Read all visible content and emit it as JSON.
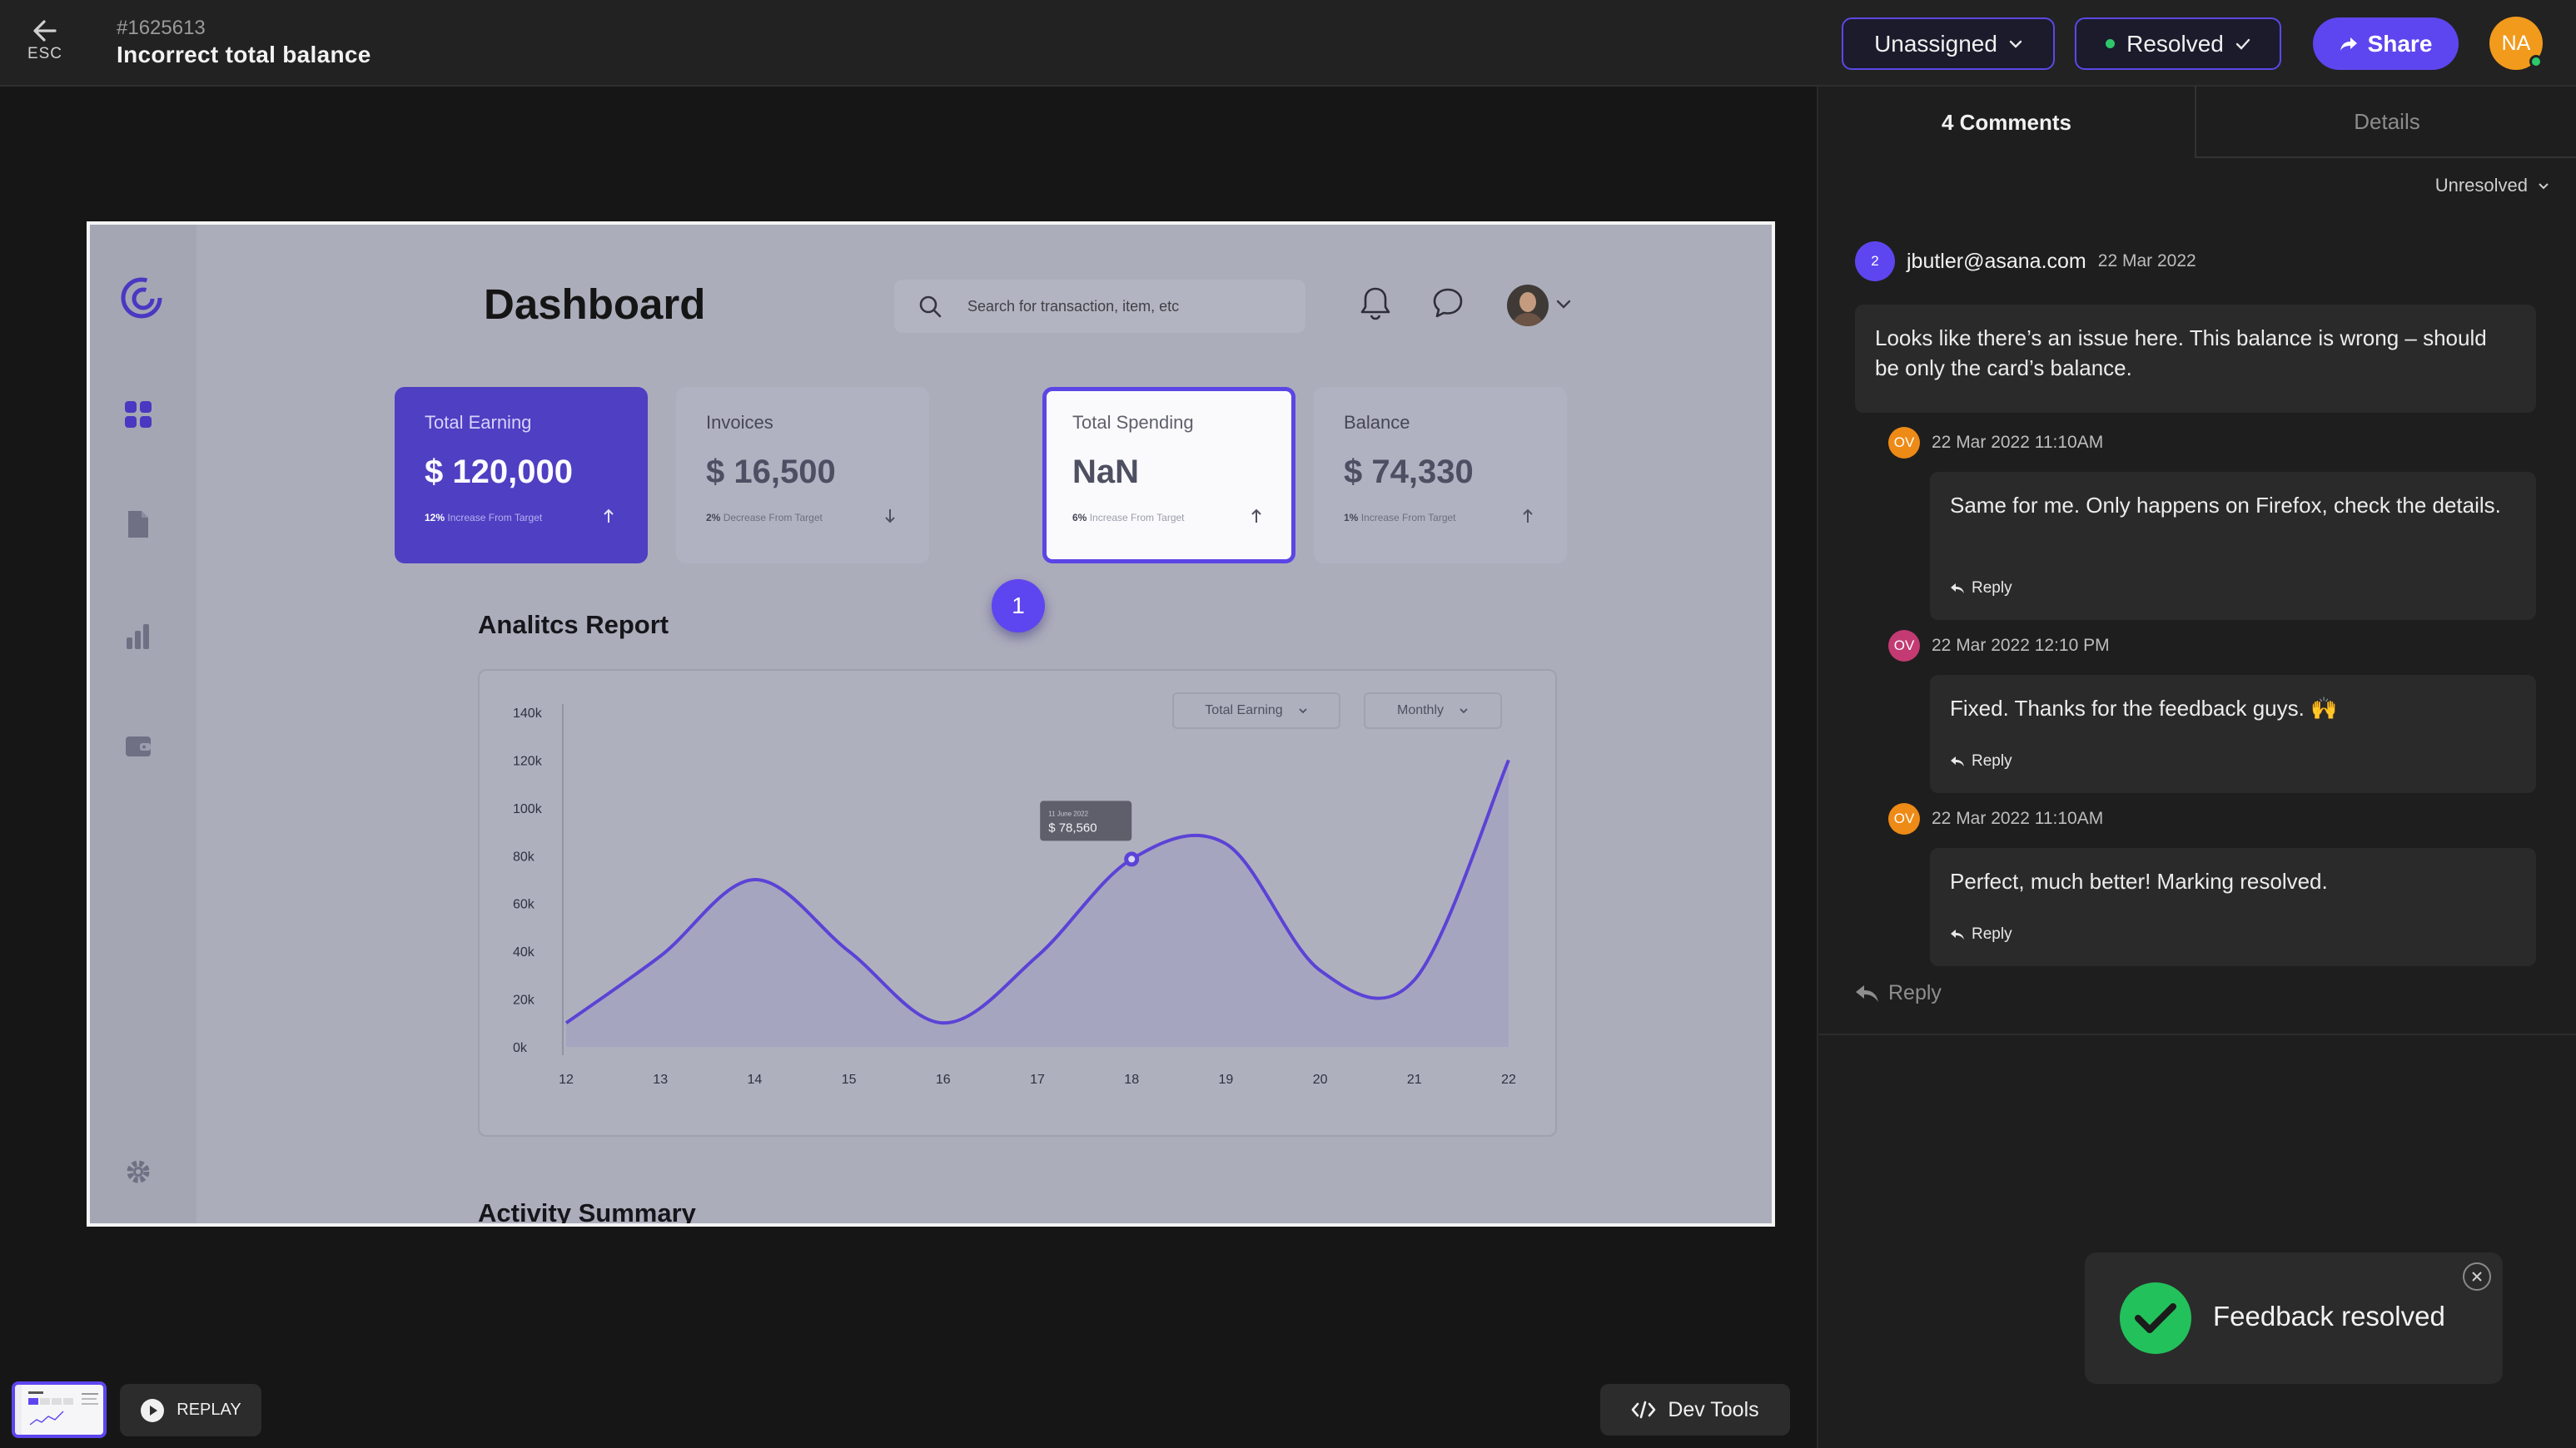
{
  "header": {
    "esc_label": "ESC",
    "ticket_id": "#1625613",
    "ticket_title": "Incorrect total balance",
    "assignee": "Unassigned",
    "status": "Resolved",
    "share_label": "Share",
    "user_initials": "NA"
  },
  "preview": {
    "title": "Dashboard",
    "search_placeholder": "Search for transaction, item, etc",
    "cards": [
      {
        "label": "Total Earning",
        "value": "$ 120,000",
        "pct": "12%",
        "note": "Increase From Target",
        "trend": "up"
      },
      {
        "label": "Invoices",
        "value": "$ 16,500",
        "pct": "2%",
        "note": "Decrease From Target",
        "trend": "down"
      },
      {
        "label": "Total Spending",
        "value": "NaN",
        "pct": "6%",
        "note": "Increase From Target",
        "trend": "up"
      },
      {
        "label": "Balance",
        "value": "$ 74,330",
        "pct": "1%",
        "note": "Increase From Target",
        "trend": "up"
      }
    ],
    "pin_number": "1",
    "report_title": "Analitcs Report",
    "activity_title": "Activity Summary",
    "chart_filter_metric": "Total Earning",
    "chart_filter_period": "Monthly",
    "tooltip_label": "11 June 2022",
    "tooltip_value": "$ 78,560"
  },
  "chart_data": {
    "type": "area",
    "x": [
      12,
      13,
      14,
      15,
      16,
      17,
      18,
      19,
      20,
      21,
      22
    ],
    "values": [
      10,
      38,
      70,
      40,
      10,
      38,
      78.56,
      85,
      32,
      28,
      120
    ],
    "yticks": [
      "0k",
      "20k",
      "40k",
      "60k",
      "80k",
      "100k",
      "120k",
      "140k"
    ],
    "xticks": [
      "12",
      "13",
      "14",
      "15",
      "16",
      "17",
      "18",
      "19",
      "20",
      "21",
      "22"
    ],
    "ylim": [
      0,
      140
    ],
    "highlight_x": 18,
    "line_color": "#5b43d6"
  },
  "panel": {
    "tab_comments": "4 Comments",
    "tab_details": "Details",
    "filter": "Unresolved",
    "comments": [
      {
        "avatar": "2",
        "author": "jbutler@asana.com",
        "date": "22 Mar 2022",
        "text": "Looks like there’s an issue here. This balance is wrong – should be only the card’s balance.",
        "avatar_color": "#5d46ef"
      },
      {
        "avatar": "OV",
        "author": "",
        "date": "22 Mar 2022 11:10AM",
        "text": "Same for me. Only happens on Firefox, check the details.",
        "reply": "Reply",
        "avatar_color": "#ee8a16"
      },
      {
        "avatar": "OV",
        "author": "",
        "date": "22 Mar 2022 12:10 PM",
        "text": "Fixed. Thanks for the feedback guys. 🙌",
        "reply": "Reply",
        "avatar_color": "#c33b72"
      },
      {
        "avatar": "OV",
        "author": "",
        "date": "22 Mar 2022 11:10AM",
        "text": "Perfect, much better! Marking resolved.",
        "reply": "Reply",
        "avatar_color": "#ee8a16"
      }
    ],
    "reply_label": "Reply"
  },
  "toast": {
    "message": "Feedback resolved"
  },
  "bottom": {
    "replay_label": "REPLAY",
    "devtools_label": "Dev Tools"
  }
}
